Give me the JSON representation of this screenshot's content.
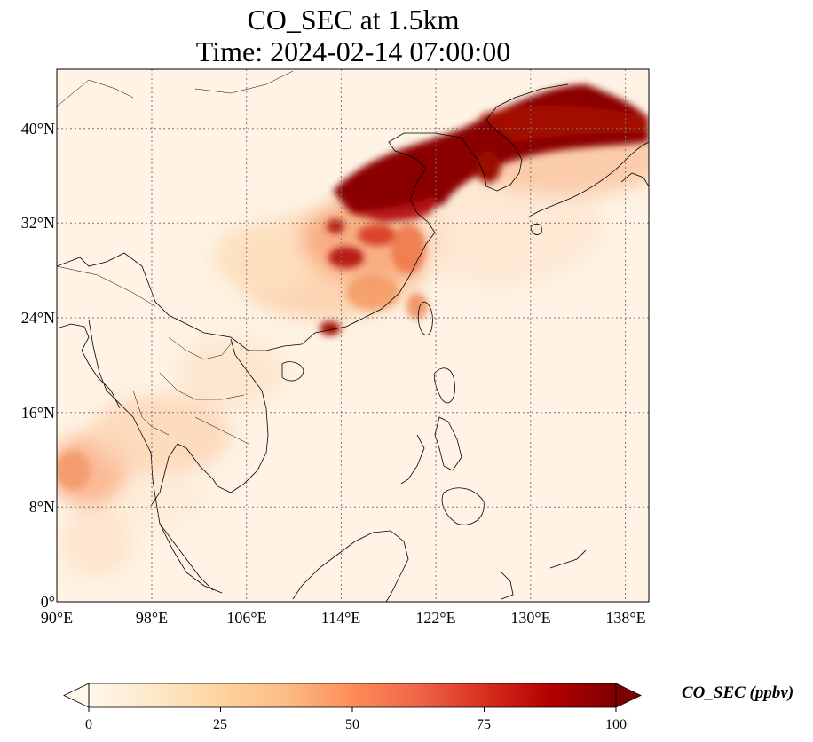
{
  "title": {
    "line1": "CO_SEC at 1.5km",
    "line2": "Time: 2024-02-14 07:00:00"
  },
  "map": {
    "extent": {
      "lon_min": 90,
      "lon_max": 140,
      "lat_min": 0,
      "lat_max": 45
    },
    "lat_ticks": [
      {
        "value": 0,
        "label": "0°"
      },
      {
        "value": 8,
        "label": "8°N"
      },
      {
        "value": 16,
        "label": "16°N"
      },
      {
        "value": 24,
        "label": "24°N"
      },
      {
        "value": 32,
        "label": "32°N"
      },
      {
        "value": 40,
        "label": "40°N"
      }
    ],
    "lon_ticks": [
      {
        "value": 90,
        "label": "90°E"
      },
      {
        "value": 98,
        "label": "98°E"
      },
      {
        "value": 106,
        "label": "106°E"
      },
      {
        "value": 114,
        "label": "114°E"
      },
      {
        "value": 122,
        "label": "122°E"
      },
      {
        "value": 130,
        "label": "130°E"
      },
      {
        "value": 138,
        "label": "138°E"
      }
    ],
    "gridlines": true,
    "colormap": "OrRd",
    "plumes": [
      {
        "region": "North China Plain to Korea/Japan Sea",
        "level": "high"
      },
      {
        "region": "Yangtze River Delta",
        "level": "high"
      },
      {
        "region": "Pearl River Delta",
        "level": "high"
      },
      {
        "region": "Central/South China",
        "level": "moderate"
      },
      {
        "region": "Myanmar / Bay of Bengal coast",
        "level": "moderate"
      },
      {
        "region": "Indochina",
        "level": "low"
      }
    ]
  },
  "colorbar": {
    "label": "CO_SEC (ppbv)",
    "ticks": [
      "0",
      "25",
      "50",
      "75",
      "100"
    ],
    "min": 0,
    "max": 100,
    "extend": "both",
    "colors": [
      "#fff7ec",
      "#fee8c8",
      "#fdd49e",
      "#fdbb84",
      "#fc8d59",
      "#ef6548",
      "#d7301f",
      "#b30000",
      "#7f0000"
    ]
  }
}
